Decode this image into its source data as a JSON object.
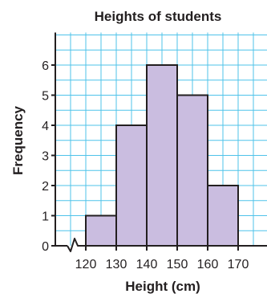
{
  "chart_data": {
    "type": "bar",
    "title": "Heights of students",
    "xlabel": "Height (cm)",
    "ylabel": "Frequency",
    "bins": [
      {
        "from": 120,
        "to": 130,
        "value": 1
      },
      {
        "from": 130,
        "to": 140,
        "value": 4
      },
      {
        "from": 140,
        "to": 150,
        "value": 6
      },
      {
        "from": 150,
        "to": 160,
        "value": 5
      },
      {
        "from": 160,
        "to": 170,
        "value": 2
      }
    ],
    "x_ticks": [
      120,
      130,
      140,
      150,
      160,
      170
    ],
    "y_ticks": [
      0,
      1,
      2,
      3,
      4,
      5,
      6
    ],
    "xlim": [
      110,
      180
    ],
    "ylim": [
      0,
      7
    ],
    "x_axis_break": true,
    "grid": true,
    "bar_color": "#cabde0",
    "grid_color": "#4fc3ea",
    "edge_color": "#231f20"
  }
}
